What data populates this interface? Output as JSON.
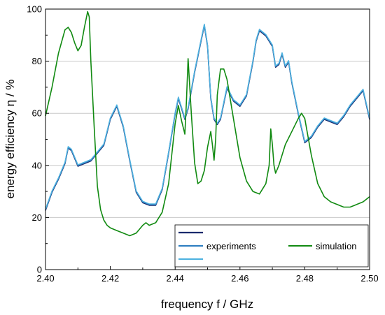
{
  "chart_data": {
    "type": "line",
    "xlabel": "frequency f / GHz",
    "ylabel": "energy efficiency η / %",
    "xlim": [
      2.4,
      2.5
    ],
    "ylim": [
      0,
      100
    ],
    "x_ticks": [
      "2.40",
      "2.42",
      "2.44",
      "2.46",
      "2.48",
      "2.50"
    ],
    "y_ticks": [
      "0",
      "20",
      "40",
      "60",
      "80",
      "100"
    ],
    "grid": "horizontal",
    "legend_position": "bottom-right",
    "legend_label_experiments": "experiments",
    "legend_label_simulation": "simulation",
    "colors": {
      "exp_dark": "#1a2a6c",
      "exp_mid": "#2f7fc1",
      "exp_light": "#4fb3e0",
      "simulation": "#118a11"
    },
    "series": [
      {
        "name": "experiments",
        "color": "#2f7fc1",
        "x": [
          2.4,
          2.402,
          2.404,
          2.406,
          2.407,
          2.408,
          2.41,
          2.412,
          2.414,
          2.416,
          2.418,
          2.419,
          2.42,
          2.422,
          2.424,
          2.426,
          2.428,
          2.43,
          2.432,
          2.434,
          2.436,
          2.438,
          2.44,
          2.441,
          2.442,
          2.443,
          2.444,
          2.446,
          2.448,
          2.449,
          2.45,
          2.451,
          2.452,
          2.453,
          2.454,
          2.456,
          2.458,
          2.46,
          2.462,
          2.464,
          2.465,
          2.466,
          2.468,
          2.47,
          2.471,
          2.472,
          2.473,
          2.474,
          2.475,
          2.476,
          2.478,
          2.48,
          2.482,
          2.484,
          2.486,
          2.488,
          2.49,
          2.492,
          2.494,
          2.496,
          2.498,
          2.5
        ],
        "y": [
          23,
          30,
          35,
          41,
          47,
          46,
          40,
          41,
          42,
          45,
          48,
          53,
          58,
          63,
          55,
          42,
          30,
          26,
          25,
          25,
          31,
          45,
          60,
          66,
          62,
          58,
          62,
          76,
          88,
          94,
          86,
          66,
          58,
          56,
          58,
          70,
          65,
          63,
          67,
          80,
          88,
          92,
          90,
          86,
          78,
          79,
          83,
          78,
          80,
          72,
          60,
          49,
          51,
          55,
          58,
          57,
          56,
          59,
          63,
          66,
          69,
          58
        ]
      },
      {
        "name": "simulation",
        "color": "#118a11",
        "x": [
          2.4,
          2.402,
          2.404,
          2.406,
          2.407,
          2.408,
          2.409,
          2.41,
          2.411,
          2.412,
          2.413,
          2.4135,
          2.414,
          2.415,
          2.416,
          2.417,
          2.418,
          2.4185,
          2.419,
          2.42,
          2.422,
          2.424,
          2.426,
          2.428,
          2.43,
          2.431,
          2.432,
          2.434,
          2.436,
          2.438,
          2.44,
          2.441,
          2.442,
          2.443,
          2.4435,
          2.444,
          2.445,
          2.446,
          2.447,
          2.448,
          2.449,
          2.45,
          2.451,
          2.4515,
          2.452,
          2.4525,
          2.453,
          2.454,
          2.455,
          2.456,
          2.458,
          2.46,
          2.462,
          2.464,
          2.466,
          2.468,
          2.469,
          2.4695,
          2.47,
          2.4705,
          2.471,
          2.472,
          2.474,
          2.476,
          2.478,
          2.479,
          2.48,
          2.482,
          2.484,
          2.486,
          2.488,
          2.49,
          2.492,
          2.494,
          2.496,
          2.498,
          2.5
        ],
        "y": [
          59,
          70,
          83,
          92,
          93,
          91,
          87,
          84,
          86,
          93,
          99,
          97,
          80,
          55,
          32,
          23,
          19,
          18,
          17,
          16,
          15,
          14,
          13,
          14,
          17,
          18,
          17,
          18,
          22,
          33,
          56,
          63,
          57,
          52,
          65,
          81,
          60,
          41,
          33,
          34,
          38,
          47,
          53,
          48,
          42,
          50,
          67,
          77,
          77,
          73,
          58,
          43,
          34,
          30,
          29,
          33,
          40,
          54,
          48,
          40,
          37,
          40,
          48,
          53,
          58,
          60,
          58,
          44,
          33,
          28,
          26,
          25,
          24,
          24,
          25,
          26,
          28
        ]
      }
    ]
  }
}
